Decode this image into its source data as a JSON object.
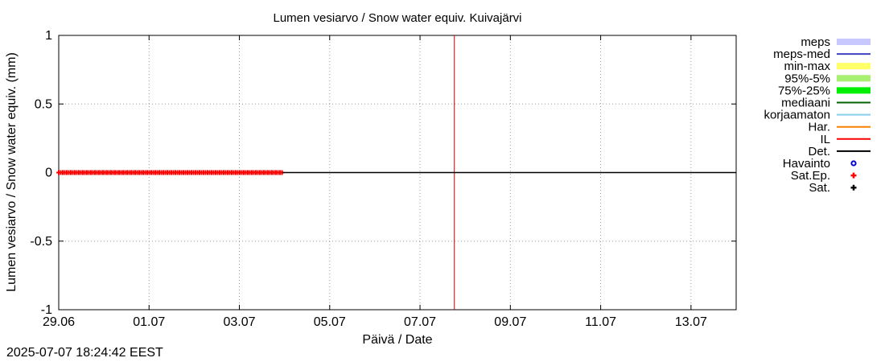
{
  "timestamp": "2025-07-07 18:24:42 EEST",
  "chart_data": {
    "type": "line",
    "title": "Lumen vesiarvo / Snow water equiv.  Kuivajärvi",
    "xlabel": "Päivä / Date",
    "ylabel": "Lumen vesiarvo / Snow water equiv. (mm)",
    "x_range_days": [
      0,
      15
    ],
    "x_ticks": [
      {
        "label": "29.06",
        "day": 0
      },
      {
        "label": "01.07",
        "day": 2
      },
      {
        "label": "03.07",
        "day": 4
      },
      {
        "label": "05.07",
        "day": 6
      },
      {
        "label": "07.07",
        "day": 8
      },
      {
        "label": "09.07",
        "day": 10
      },
      {
        "label": "11.07",
        "day": 12
      },
      {
        "label": "13.07",
        "day": 14
      }
    ],
    "ylim": [
      -1,
      1
    ],
    "y_ticks": [
      {
        "label": "1",
        "value": 1
      },
      {
        "label": "0.5",
        "value": 0.5
      },
      {
        "label": "0",
        "value": 0
      },
      {
        "label": "-0.5",
        "value": -0.5
      },
      {
        "label": "-1",
        "value": -1
      }
    ],
    "grid": true,
    "current_time_day": 8.76,
    "series": [
      {
        "name": "IL",
        "color": "#ff0000",
        "kind": "line-markers",
        "x_start_day": 0,
        "x_end_day": 4.95,
        "value": 0
      },
      {
        "name": "Det.",
        "color": "#000000",
        "kind": "line",
        "x_start_day": 4.95,
        "x_end_day": 15,
        "value": 0
      }
    ],
    "legend": {
      "position": "right",
      "entries": [
        {
          "label": "meps",
          "color": "#c8c8ff",
          "style": "band"
        },
        {
          "label": "meps-med",
          "color": "#4040c0",
          "style": "line"
        },
        {
          "label": "min-max",
          "color": "#ffff66",
          "style": "band"
        },
        {
          "label": "95%-5%",
          "color": "#a8f070",
          "style": "band"
        },
        {
          "label": "75%-25%",
          "color": "#00ee00",
          "style": "band"
        },
        {
          "label": "mediaani",
          "color": "#006400",
          "style": "line"
        },
        {
          "label": "korjaamaton",
          "color": "#87ceeb",
          "style": "line"
        },
        {
          "label": "Har.",
          "color": "#ff8000",
          "style": "line"
        },
        {
          "label": "IL",
          "color": "#ff0000",
          "style": "line"
        },
        {
          "label": "Det.",
          "color": "#000000",
          "style": "line"
        },
        {
          "label": "Havainto",
          "color": "#0000cc",
          "style": "circle"
        },
        {
          "label": "Sat.Ep.",
          "color": "#ff0000",
          "style": "plus"
        },
        {
          "label": "Sat.",
          "color": "#000000",
          "style": "plus"
        }
      ]
    }
  }
}
